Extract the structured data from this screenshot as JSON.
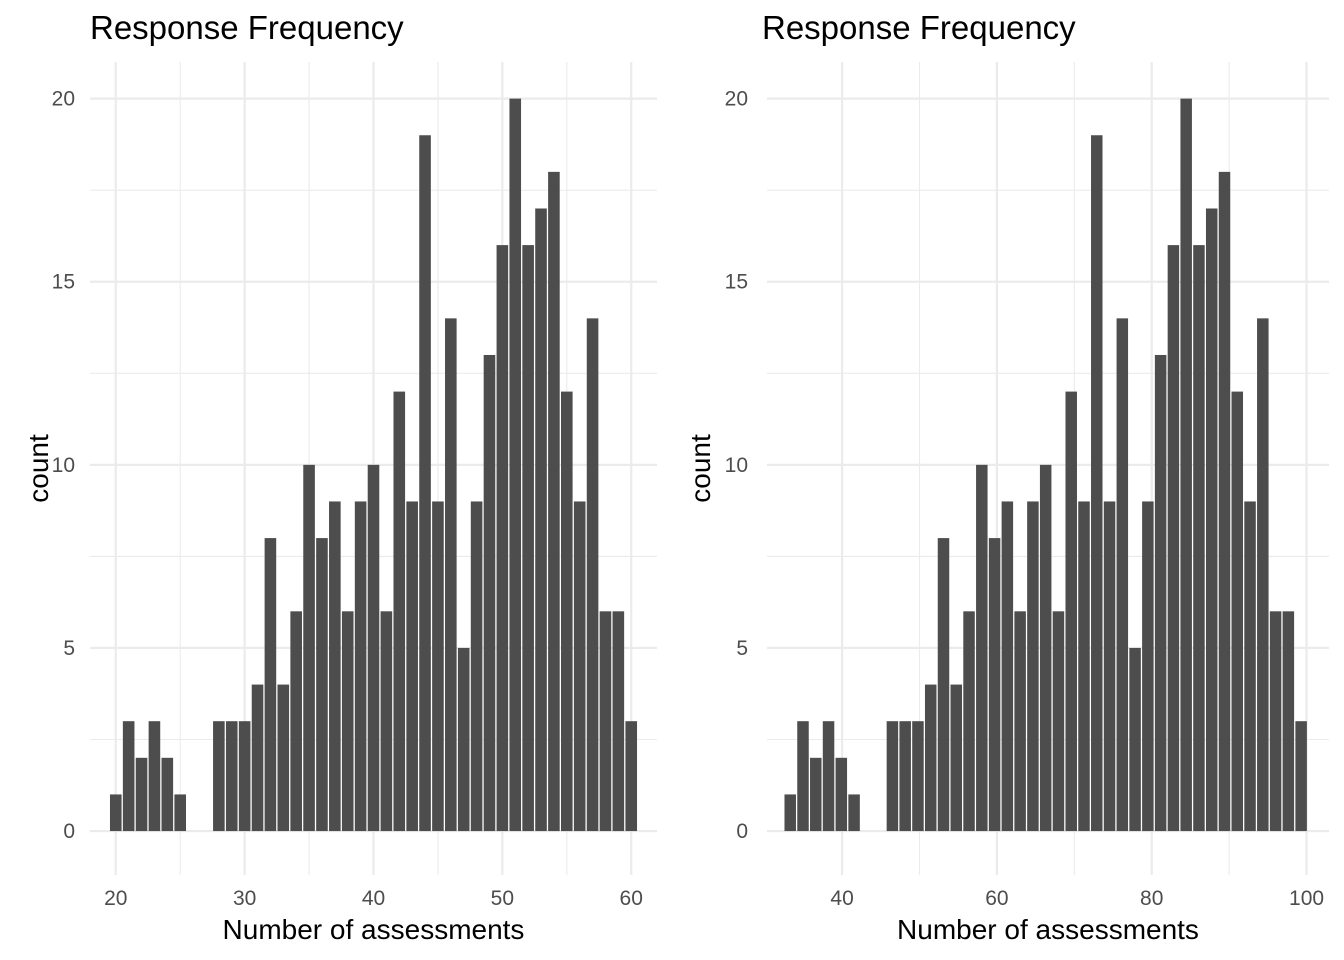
{
  "chart_data": [
    {
      "type": "bar",
      "title": "Response Frequency",
      "xlabel": "Number of assessments",
      "ylabel": "count",
      "xlim": [
        18,
        62
      ],
      "ylim": [
        -1.2,
        21.0
      ],
      "xticks": [
        20,
        30,
        40,
        50,
        60
      ],
      "xtick_labels": [
        "20",
        "30",
        "40",
        "50",
        "60"
      ],
      "yticks": [
        0,
        5,
        10,
        15,
        20
      ],
      "ytick_labels": [
        "0",
        "5",
        "10",
        "15",
        "20"
      ],
      "grid": true,
      "bar_width": 0.9,
      "x": [
        20,
        21,
        22,
        23,
        24,
        25,
        26,
        27,
        28,
        29,
        30,
        31,
        32,
        33,
        34,
        35,
        36,
        37,
        38,
        39,
        40,
        41,
        42,
        43,
        44,
        45,
        46,
        47,
        48,
        49,
        50,
        51,
        52,
        53,
        54,
        55,
        56,
        57,
        58,
        59,
        60
      ],
      "values": [
        1,
        3,
        2,
        3,
        2,
        1,
        0,
        0,
        3,
        3,
        3,
        4,
        8,
        4,
        6,
        10,
        8,
        9,
        6,
        9,
        10,
        6,
        12,
        9,
        19,
        9,
        14,
        5,
        9,
        13,
        16,
        20,
        16,
        17,
        18,
        12,
        9,
        14,
        6,
        6,
        3
      ]
    },
    {
      "type": "bar",
      "title": "Response Frequency",
      "xlabel": "Number of assessments",
      "ylabel": "count",
      "xlim": [
        30.3,
        102.9
      ],
      "ylim": [
        -1.2,
        21.0
      ],
      "xticks": [
        40,
        60,
        80,
        100
      ],
      "xtick_labels": [
        "40",
        "60",
        "80",
        "100"
      ],
      "yticks": [
        0,
        5,
        10,
        15,
        20
      ],
      "ytick_labels": [
        "0",
        "5",
        "10",
        "15",
        "20"
      ],
      "grid": true,
      "bar_width": 1.485,
      "x": [
        33.3,
        34.95,
        36.6,
        38.25,
        39.9,
        41.55,
        43.2,
        44.85,
        46.5,
        48.15,
        49.8,
        51.45,
        53.1,
        54.75,
        56.4,
        58.05,
        59.7,
        61.35,
        63.0,
        64.65,
        66.3,
        67.95,
        69.6,
        71.25,
        72.9,
        74.55,
        76.2,
        77.85,
        79.5,
        81.15,
        82.8,
        84.45,
        86.1,
        87.75,
        89.4,
        91.05,
        92.7,
        94.35,
        96.0,
        97.65,
        99.3
      ],
      "values": [
        1,
        3,
        2,
        3,
        2,
        1,
        0,
        0,
        3,
        3,
        3,
        4,
        8,
        4,
        6,
        10,
        8,
        9,
        6,
        9,
        10,
        6,
        12,
        9,
        19,
        9,
        14,
        5,
        9,
        13,
        16,
        20,
        16,
        17,
        18,
        12,
        9,
        14,
        6,
        6,
        3
      ]
    }
  ]
}
